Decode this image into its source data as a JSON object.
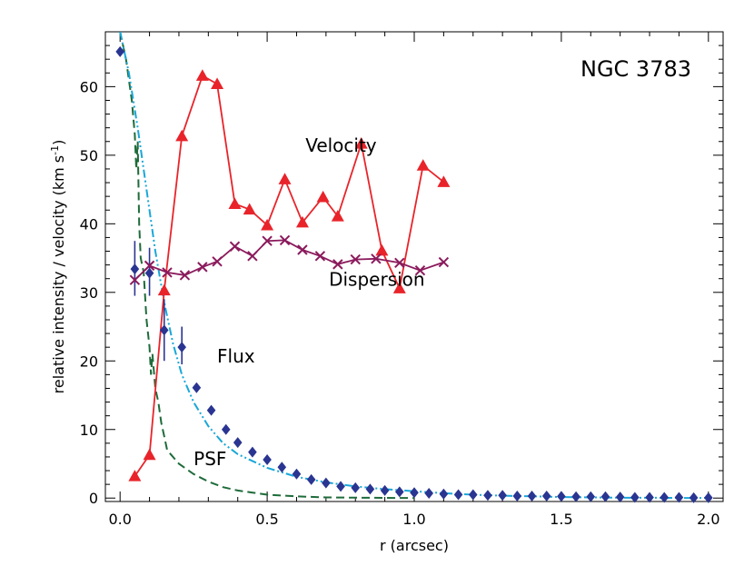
{
  "chart_data": {
    "type": "line",
    "title": "NGC 3783",
    "xlabel": "r (arcsec)",
    "ylabel_parts": [
      "relative intensity / velocity (km s",
      "-1",
      ")"
    ],
    "xlim": [
      -0.05,
      2.05
    ],
    "ylim": [
      -0.5,
      68
    ],
    "xticks": [
      0.0,
      0.5,
      1.0,
      1.5,
      2.0
    ],
    "xtick_labels": [
      "0.0",
      "0.5",
      "1.0",
      "1.5",
      "2.0"
    ],
    "yticks": [
      0,
      10,
      20,
      30,
      40,
      50,
      60
    ],
    "ytick_labels": [
      "0",
      "10",
      "20",
      "30",
      "40",
      "50",
      "60"
    ],
    "x_minor_step": 0.1,
    "y_minor_step": 2,
    "grid": false,
    "legend": "none",
    "series": [
      {
        "key": "velocity",
        "marker": "triangle",
        "color": "#e8242a",
        "points": [
          [
            0.05,
            3.2
          ],
          [
            0.1,
            6.3
          ],
          [
            0.15,
            30.3
          ],
          [
            0.21,
            52.8
          ],
          [
            0.28,
            61.6
          ],
          [
            0.33,
            60.4
          ],
          [
            0.39,
            42.9
          ],
          [
            0.44,
            42.1
          ],
          [
            0.5,
            39.8
          ],
          [
            0.56,
            46.5
          ],
          [
            0.62,
            40.2
          ],
          [
            0.69,
            43.9
          ],
          [
            0.74,
            41.1
          ],
          [
            0.82,
            51.7
          ],
          [
            0.89,
            36.1
          ],
          [
            0.95,
            30.6
          ],
          [
            1.03,
            48.5
          ],
          [
            1.1,
            46.1
          ]
        ]
      },
      {
        "key": "dispersion",
        "marker": "cross",
        "color": "#8b1a5c",
        "points": [
          [
            0.05,
            31.8
          ],
          [
            0.1,
            33.9
          ],
          [
            0.16,
            32.9
          ],
          [
            0.22,
            32.5
          ],
          [
            0.28,
            33.7
          ],
          [
            0.33,
            34.5
          ],
          [
            0.39,
            36.7
          ],
          [
            0.45,
            35.3
          ],
          [
            0.5,
            37.5
          ],
          [
            0.56,
            37.6
          ],
          [
            0.62,
            36.2
          ],
          [
            0.68,
            35.3
          ],
          [
            0.74,
            34.1
          ],
          [
            0.8,
            34.8
          ],
          [
            0.87,
            34.9
          ],
          [
            0.95,
            34.3
          ],
          [
            1.02,
            33.2
          ],
          [
            1.1,
            34.4
          ]
        ]
      },
      {
        "key": "flux",
        "marker": "diamond",
        "color": "#2a3591",
        "points": [
          [
            0.0,
            65.1
          ],
          [
            0.05,
            33.4
          ],
          [
            0.1,
            32.8
          ],
          [
            0.15,
            24.5
          ],
          [
            0.21,
            22.0
          ],
          [
            0.26,
            16.1
          ],
          [
            0.31,
            12.8
          ],
          [
            0.36,
            10.0
          ],
          [
            0.4,
            8.1
          ],
          [
            0.45,
            6.7
          ],
          [
            0.5,
            5.6
          ],
          [
            0.55,
            4.5
          ],
          [
            0.6,
            3.5
          ],
          [
            0.65,
            2.7
          ],
          [
            0.7,
            2.2
          ],
          [
            0.75,
            1.7
          ],
          [
            0.8,
            1.5
          ],
          [
            0.85,
            1.3
          ],
          [
            0.9,
            1.1
          ],
          [
            0.95,
            0.9
          ],
          [
            1.0,
            0.8
          ],
          [
            1.05,
            0.7
          ],
          [
            1.1,
            0.6
          ],
          [
            1.15,
            0.5
          ],
          [
            1.2,
            0.5
          ],
          [
            1.25,
            0.4
          ],
          [
            1.3,
            0.4
          ],
          [
            1.35,
            0.3
          ],
          [
            1.4,
            0.3
          ],
          [
            1.45,
            0.3
          ],
          [
            1.5,
            0.25
          ],
          [
            1.55,
            0.2
          ],
          [
            1.6,
            0.2
          ],
          [
            1.65,
            0.2
          ],
          [
            1.7,
            0.15
          ],
          [
            1.75,
            0.1
          ],
          [
            1.8,
            0.1
          ],
          [
            1.85,
            0.1
          ],
          [
            1.9,
            0.1
          ],
          [
            1.95,
            0.05
          ],
          [
            2.0,
            0.05
          ]
        ],
        "error_bars": [
          [
            0.05,
            29.5,
            37.5
          ],
          [
            0.1,
            29.5,
            36.5
          ],
          [
            0.15,
            20.0,
            29.0
          ],
          [
            0.21,
            19.5,
            25.0
          ]
        ]
      },
      {
        "key": "model",
        "style": "dash-dot-dot",
        "color": "#1aa7d8",
        "points": [
          [
            0.0,
            68.0
          ],
          [
            0.03,
            62.0
          ],
          [
            0.06,
            54.0
          ],
          [
            0.09,
            45.0
          ],
          [
            0.12,
            36.0
          ],
          [
            0.15,
            28.5
          ],
          [
            0.18,
            22.5
          ],
          [
            0.21,
            18.0
          ],
          [
            0.25,
            14.0
          ],
          [
            0.3,
            10.5
          ],
          [
            0.35,
            8.0
          ],
          [
            0.4,
            6.4
          ],
          [
            0.5,
            4.4
          ],
          [
            0.6,
            3.1
          ],
          [
            0.7,
            2.3
          ],
          [
            0.8,
            1.7
          ],
          [
            0.9,
            1.3
          ],
          [
            1.0,
            1.0
          ],
          [
            1.1,
            0.7
          ],
          [
            1.2,
            0.5
          ],
          [
            1.3,
            0.35
          ],
          [
            1.4,
            0.25
          ],
          [
            1.5,
            0.15
          ],
          [
            1.6,
            0.1
          ],
          [
            1.7,
            0.06
          ],
          [
            1.8,
            0.04
          ],
          [
            2.0,
            0.0
          ]
        ]
      },
      {
        "key": "psf",
        "style": "dashed",
        "color": "#1e6b3a",
        "points": [
          [
            0.0,
            68.0
          ],
          [
            0.02,
            64.0
          ],
          [
            0.04,
            58.0
          ],
          [
            0.05,
            53.0
          ],
          [
            0.055,
            48.0
          ],
          [
            0.06,
            52.0
          ],
          [
            0.065,
            40.0
          ],
          [
            0.07,
            35.0
          ],
          [
            0.08,
            33.0
          ],
          [
            0.09,
            26.0
          ],
          [
            0.1,
            22.0
          ],
          [
            0.105,
            18.0
          ],
          [
            0.11,
            21.0
          ],
          [
            0.12,
            16.0
          ],
          [
            0.13,
            14.0
          ],
          [
            0.14,
            11.0
          ],
          [
            0.15,
            9.0
          ],
          [
            0.16,
            7.0
          ],
          [
            0.17,
            6.5
          ],
          [
            0.2,
            5.0
          ],
          [
            0.25,
            3.5
          ],
          [
            0.3,
            2.4
          ],
          [
            0.35,
            1.6
          ],
          [
            0.4,
            1.1
          ],
          [
            0.45,
            0.8
          ],
          [
            0.5,
            0.5
          ],
          [
            0.6,
            0.25
          ],
          [
            0.7,
            0.1
          ],
          [
            0.8,
            0.05
          ],
          [
            1.0,
            0.0
          ]
        ]
      }
    ],
    "annotations": [
      {
        "key": "velocity_label",
        "text": "Velocity",
        "x": 0.63,
        "y": 50.5
      },
      {
        "key": "dispersion_label",
        "text": "Dispersion",
        "x": 0.71,
        "y": 31.0
      },
      {
        "key": "flux_label",
        "text": "Flux",
        "x": 0.33,
        "y": 19.8
      },
      {
        "key": "psf_label",
        "text": "PSF",
        "x": 0.25,
        "y": 4.8
      }
    ]
  }
}
